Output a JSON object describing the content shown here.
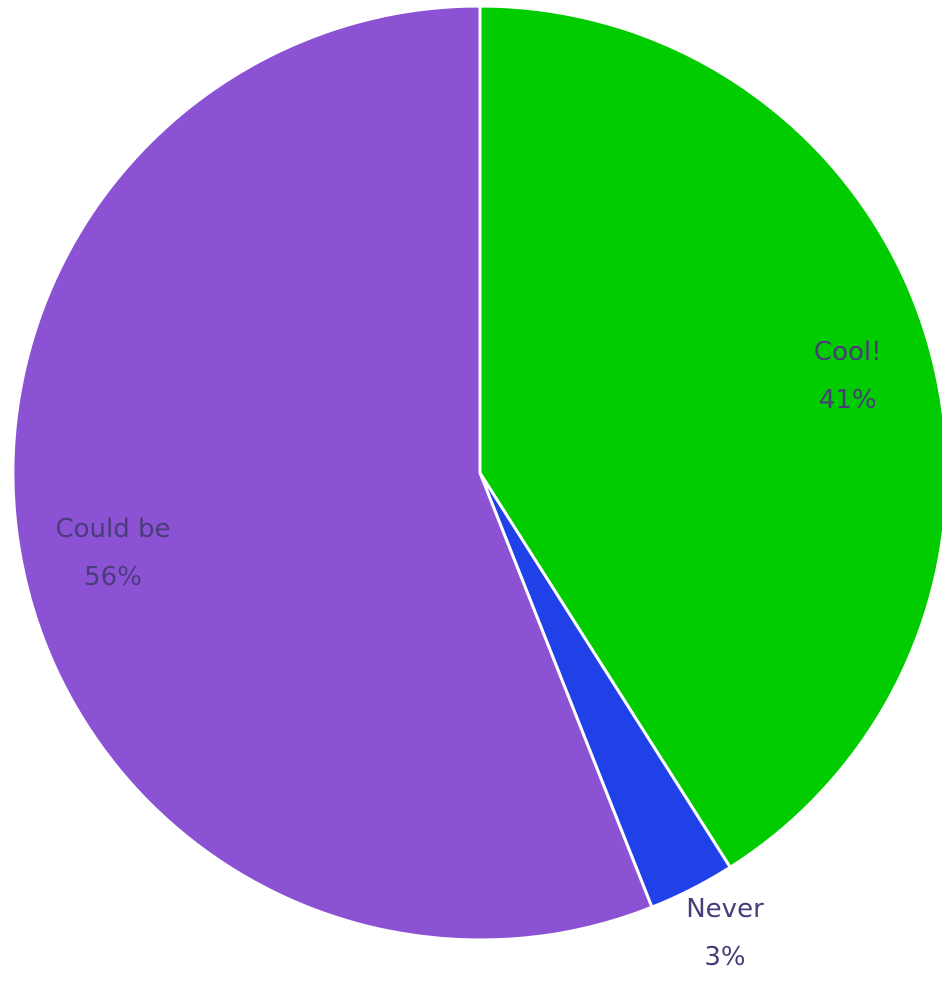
{
  "chart_data": {
    "type": "pie",
    "title": "",
    "slices": [
      {
        "label": "Cool!",
        "value": 41,
        "value_label": "41%",
        "color": "#00cc00"
      },
      {
        "label": "Never",
        "value": 3,
        "value_label": "3%",
        "color": "#2040e8"
      },
      {
        "label": "Could be",
        "value": 56,
        "value_label": "56%",
        "color": "#8b52d4"
      }
    ],
    "start_angle": "12 o'clock",
    "direction": "clockwise",
    "legend": "none"
  },
  "colors": {
    "label_text": "#4a3b7a",
    "slice_border": "#ffffff"
  }
}
